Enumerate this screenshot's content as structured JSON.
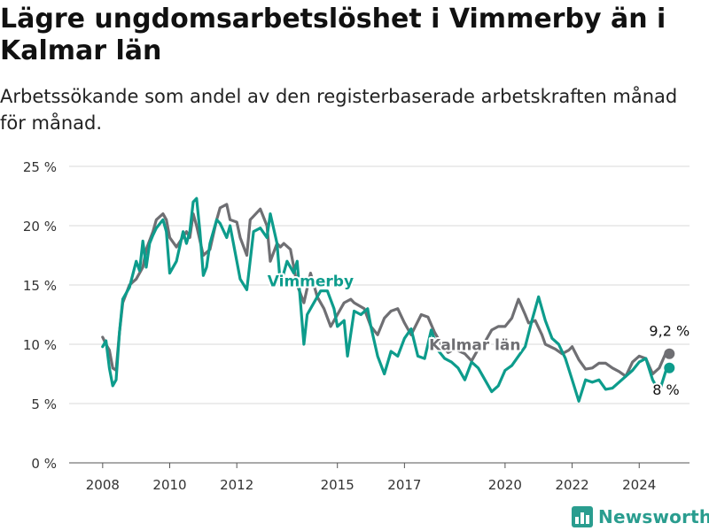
{
  "title": "Lägre ungdomsarbetslöshet i Vimmerby än i Kalmar län",
  "subtitle": "Arbetssökande som andel av den registerbaserade arbetskraften månad för månad.",
  "brand": "Newsworthy",
  "colors": {
    "vimmerby": "#0d9c8c",
    "kalmar": "#6f6f73",
    "grid": "#d9d9d9",
    "brand": "#2a9d8f"
  },
  "chart_data": {
    "type": "line",
    "ylim": [
      0,
      25
    ],
    "y_ticks": [
      0,
      5,
      10,
      15,
      20,
      25
    ],
    "y_tick_labels": [
      "0 %",
      "5 %",
      "10 %",
      "15 %",
      "20 %",
      "25 %"
    ],
    "x_ticks": [
      2008,
      2010,
      2012,
      2015,
      2017,
      2020,
      2022,
      2024
    ],
    "x_tick_labels": [
      "2008",
      "2010",
      "2012",
      "2015",
      "2017",
      "2020",
      "2022",
      "2024"
    ],
    "grid": true,
    "series": [
      {
        "name": "Kalmar län",
        "label": "Kalmar län",
        "end_label": "9,2 %",
        "x": [
          2008.0,
          2008.1,
          2008.2,
          2008.3,
          2008.4,
          2008.5,
          2008.6,
          2008.8,
          2009.0,
          2009.2,
          2009.3,
          2009.5,
          2009.6,
          2009.8,
          2009.9,
          2010.0,
          2010.2,
          2010.5,
          2010.6,
          2010.7,
          2010.8,
          2011.0,
          2011.2,
          2011.4,
          2011.5,
          2011.7,
          2011.8,
          2012.0,
          2012.1,
          2012.3,
          2012.4,
          2012.5,
          2012.7,
          2012.9,
          2013.0,
          2013.2,
          2013.3,
          2013.4,
          2013.6,
          2013.8,
          2014.0,
          2014.2,
          2014.4,
          2014.6,
          2014.8,
          2015.0,
          2015.2,
          2015.4,
          2015.5,
          2015.8,
          2016.0,
          2016.2,
          2016.4,
          2016.6,
          2016.8,
          2017.0,
          2017.2,
          2017.5,
          2017.7,
          2017.9,
          2018.1,
          2018.3,
          2018.5,
          2018.8,
          2019.0,
          2019.2,
          2019.4,
          2019.6,
          2019.8,
          2020.0,
          2020.2,
          2020.4,
          2020.6,
          2020.7,
          2020.9,
          2021.1,
          2021.2,
          2021.5,
          2021.7,
          2021.9,
          2022.0,
          2022.2,
          2022.4,
          2022.6,
          2022.8,
          2023.0,
          2023.2,
          2023.4,
          2023.6,
          2023.8,
          2024.0,
          2024.2,
          2024.4,
          2024.6,
          2024.8,
          2024.9
        ],
        "y": [
          10.6,
          10.0,
          9.5,
          8.0,
          7.8,
          11.0,
          13.5,
          15.0,
          15.5,
          16.5,
          18.0,
          19.5,
          20.5,
          21.0,
          20.5,
          19.0,
          18.2,
          19.5,
          19.0,
          21.0,
          20.0,
          17.5,
          18.0,
          20.5,
          21.5,
          21.8,
          20.5,
          20.3,
          19.0,
          17.5,
          20.5,
          20.8,
          21.4,
          20.0,
          17.0,
          18.5,
          18.2,
          18.5,
          18.0,
          15.0,
          13.5,
          16.0,
          14.0,
          13.0,
          11.5,
          12.5,
          13.5,
          13.8,
          13.5,
          13.0,
          11.5,
          10.8,
          12.2,
          12.8,
          13.0,
          11.8,
          10.8,
          12.5,
          12.3,
          11.0,
          10.0,
          9.3,
          9.6,
          9.2,
          8.6,
          9.6,
          10.2,
          11.2,
          11.5,
          11.5,
          12.2,
          13.8,
          12.5,
          11.8,
          12.0,
          10.8,
          10.0,
          9.6,
          9.2,
          9.5,
          9.8,
          8.7,
          7.9,
          8.0,
          8.4,
          8.4,
          8.0,
          7.7,
          7.3,
          8.5,
          9.0,
          8.8,
          7.5,
          8.0,
          9.3,
          9.2
        ]
      },
      {
        "name": "Vimmerby",
        "label": "Vimmerby",
        "end_label": "8 %",
        "x": [
          2008.0,
          2008.1,
          2008.2,
          2008.3,
          2008.4,
          2008.5,
          2008.6,
          2008.8,
          2009.0,
          2009.1,
          2009.2,
          2009.3,
          2009.4,
          2009.5,
          2009.6,
          2009.8,
          2009.9,
          2010.0,
          2010.1,
          2010.2,
          2010.4,
          2010.5,
          2010.6,
          2010.7,
          2010.8,
          2010.9,
          2011.0,
          2011.1,
          2011.2,
          2011.4,
          2011.5,
          2011.7,
          2011.8,
          2012.0,
          2012.1,
          2012.3,
          2012.5,
          2012.7,
          2012.9,
          2013.0,
          2013.2,
          2013.3,
          2013.5,
          2013.7,
          2013.8,
          2014.0,
          2014.1,
          2014.3,
          2014.5,
          2014.7,
          2014.9,
          2015.0,
          2015.2,
          2015.3,
          2015.5,
          2015.7,
          2015.9,
          2016.0,
          2016.2,
          2016.4,
          2016.6,
          2016.8,
          2017.0,
          2017.2,
          2017.4,
          2017.6,
          2017.8,
          2018.0,
          2018.2,
          2018.4,
          2018.6,
          2018.8,
          2019.0,
          2019.2,
          2019.4,
          2019.6,
          2019.8,
          2020.0,
          2020.2,
          2020.4,
          2020.6,
          2020.8,
          2021.0,
          2021.2,
          2021.4,
          2021.6,
          2021.8,
          2022.0,
          2022.2,
          2022.4,
          2022.6,
          2022.8,
          2023.0,
          2023.2,
          2023.4,
          2023.6,
          2023.8,
          2024.0,
          2024.2,
          2024.4,
          2024.6,
          2024.8,
          2024.9
        ],
        "y": [
          9.8,
          10.3,
          8.0,
          6.5,
          7.0,
          11.0,
          13.8,
          14.8,
          17.0,
          16.2,
          18.7,
          16.5,
          18.5,
          19.2,
          19.8,
          20.5,
          19.5,
          16.0,
          16.5,
          17.0,
          19.5,
          18.5,
          19.5,
          22.0,
          22.3,
          19.5,
          15.8,
          16.5,
          18.5,
          20.5,
          20.2,
          19.0,
          20.0,
          17.0,
          15.5,
          14.6,
          19.5,
          19.8,
          19.0,
          21.0,
          18.5,
          15.0,
          17.0,
          16.0,
          17.0,
          10.0,
          12.5,
          13.5,
          14.5,
          14.5,
          13.0,
          11.5,
          12.0,
          9.0,
          12.8,
          12.5,
          13.0,
          11.5,
          9.0,
          7.5,
          9.4,
          9.0,
          10.5,
          11.3,
          9.0,
          8.8,
          11.2,
          9.5,
          8.8,
          8.5,
          8.0,
          7.0,
          8.5,
          8.0,
          7.0,
          6.0,
          6.5,
          7.8,
          8.2,
          9.0,
          9.8,
          12.0,
          14.0,
          12.0,
          10.5,
          10.0,
          8.8,
          7.0,
          5.2,
          7.0,
          6.8,
          7.0,
          6.2,
          6.3,
          6.8,
          7.3,
          7.8,
          8.5,
          8.8,
          7.0,
          6.0,
          7.8,
          8.0
        ]
      }
    ]
  }
}
